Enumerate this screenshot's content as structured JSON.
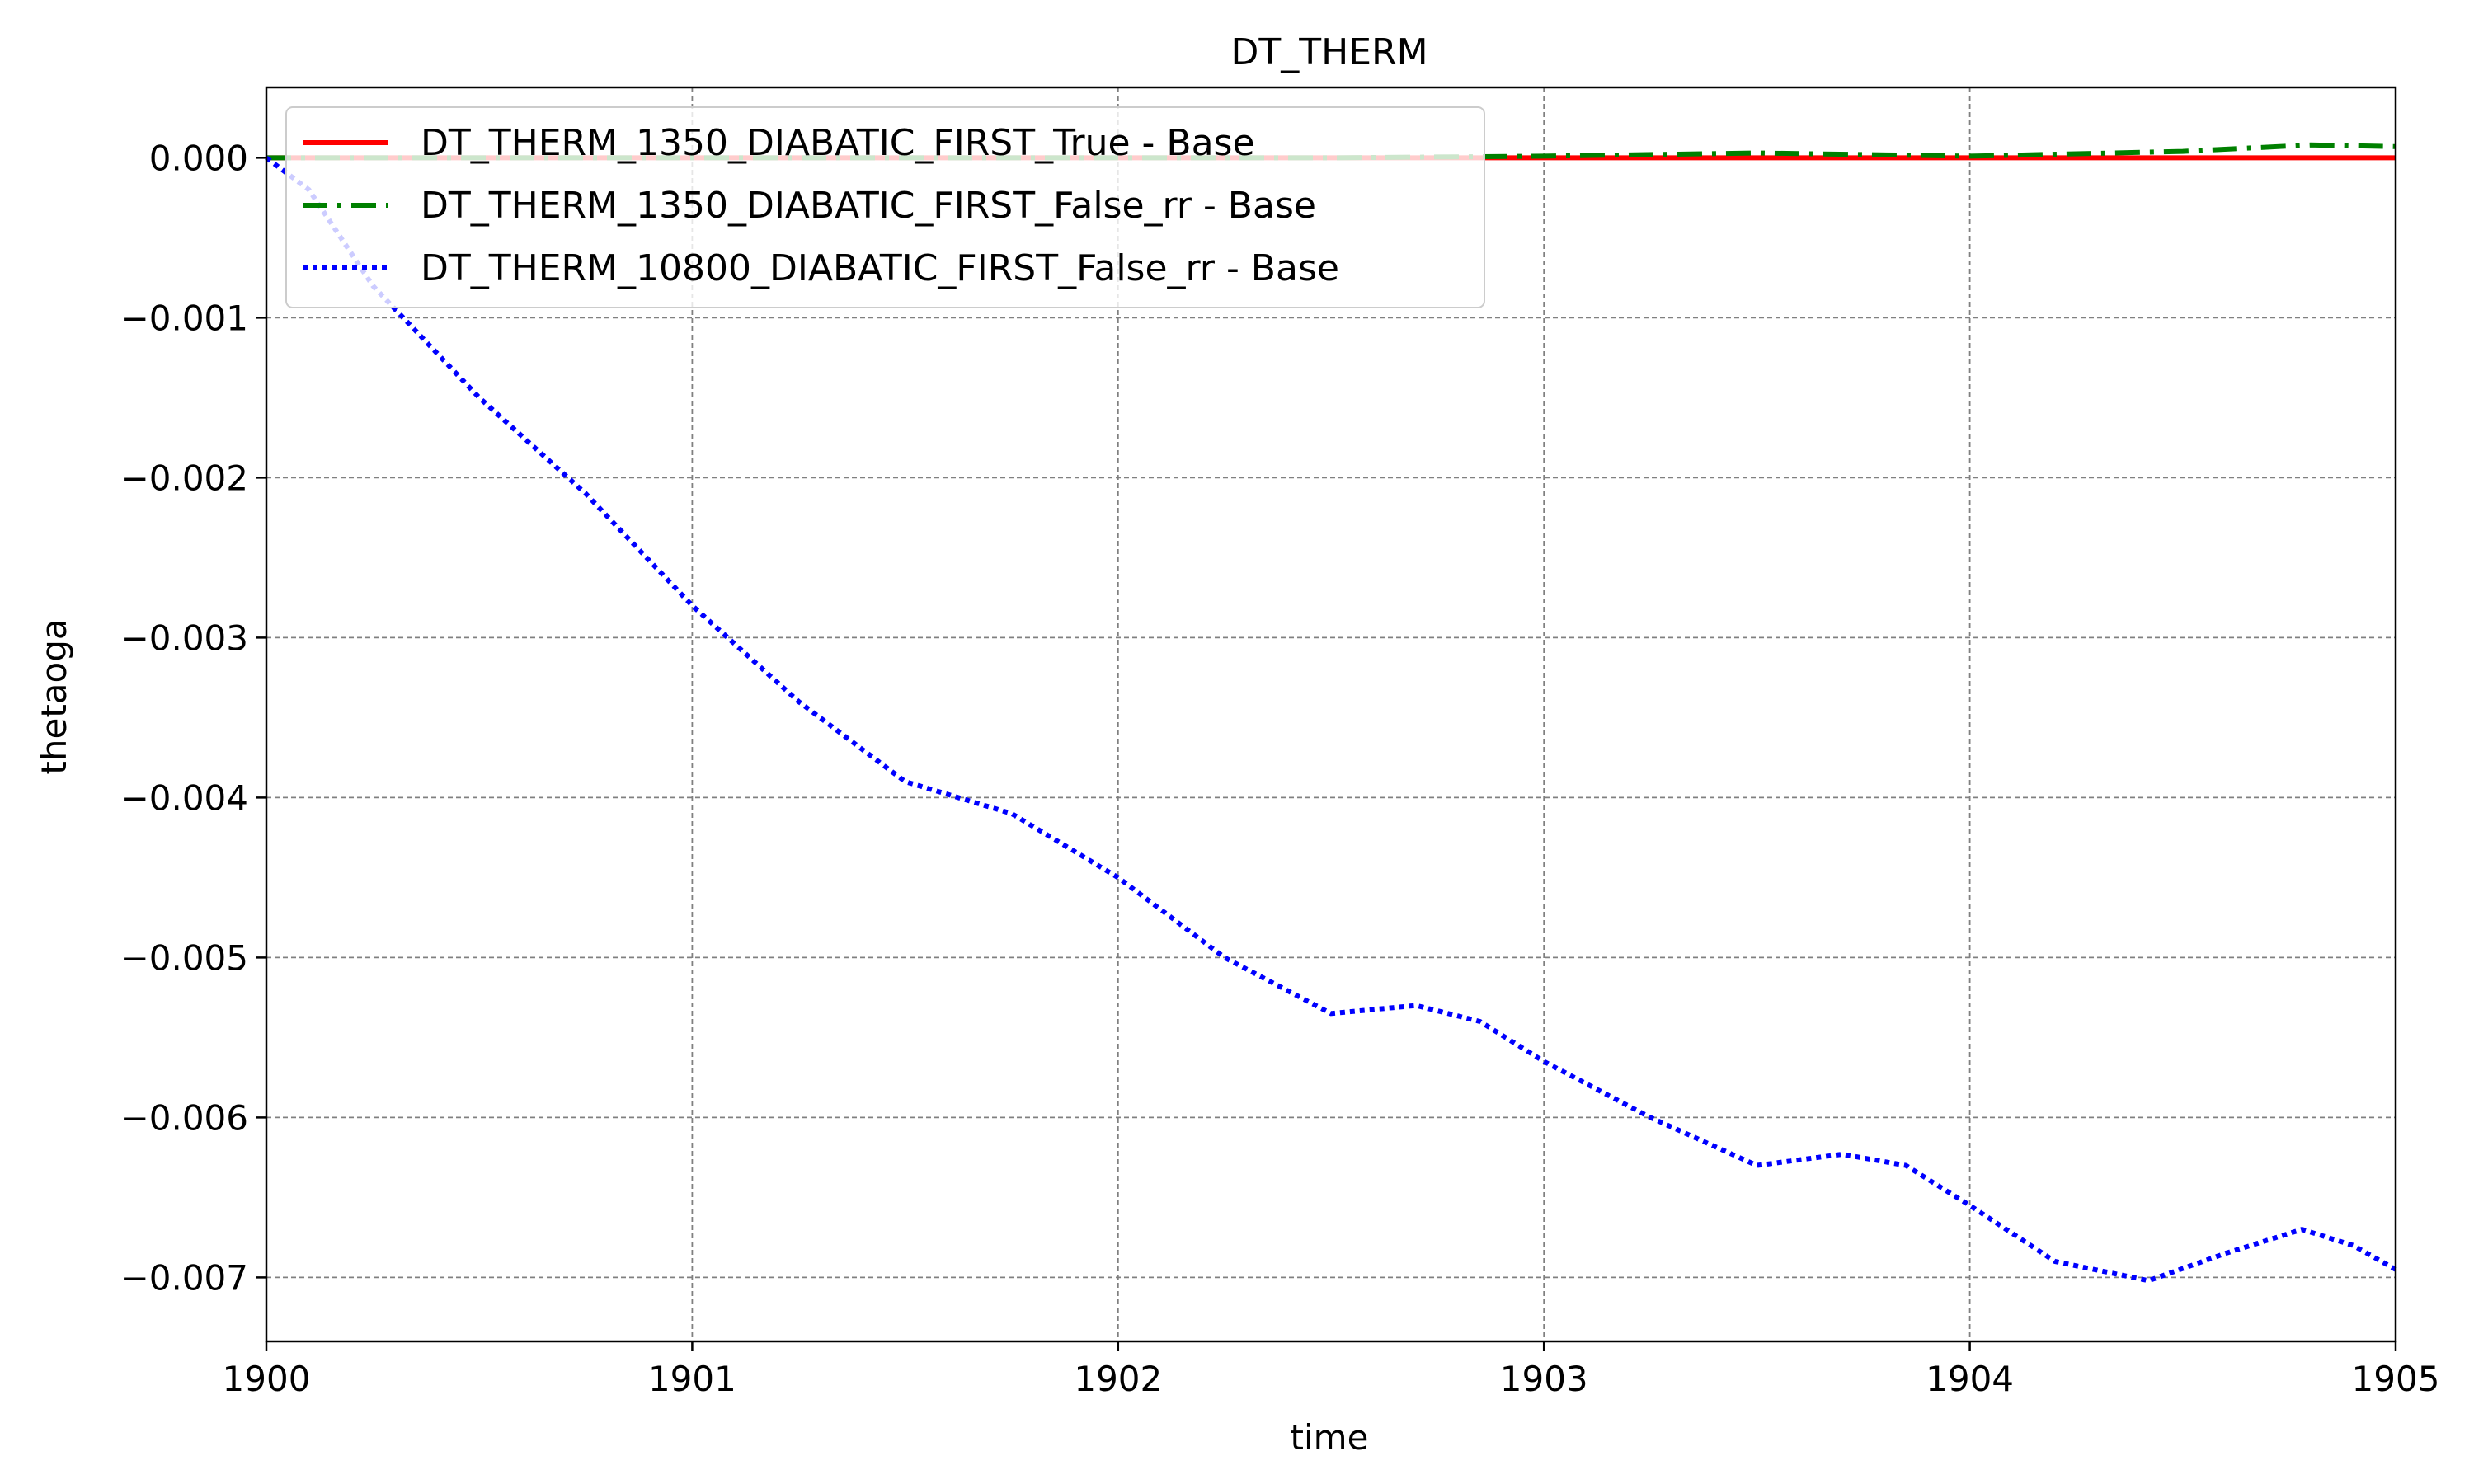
{
  "chart_data": {
    "type": "line",
    "title": "DT_THERM",
    "xlabel": "time",
    "ylabel": "thetaoga",
    "xlim": [
      1900,
      1905
    ],
    "ylim": [
      -0.0074,
      0.00044
    ],
    "xticks": [
      1900,
      1901,
      1902,
      1903,
      1904,
      1905
    ],
    "xtick_labels": [
      "1900",
      "1901",
      "1902",
      "1903",
      "1904",
      "1905"
    ],
    "yticks": [
      0.0,
      -0.001,
      -0.002,
      -0.003,
      -0.004,
      -0.005,
      -0.006,
      -0.007
    ],
    "ytick_labels": [
      "0.000",
      "−0.001",
      "−0.002",
      "−0.003",
      "−0.004",
      "−0.005",
      "−0.006",
      "−0.007"
    ],
    "grid": true,
    "legend_position": "top-left",
    "series": [
      {
        "name": "DT_THERM_1350_DIABATIC_FIRST_True - Base",
        "color": "#ff0000",
        "style": "solid",
        "x": [
          1900,
          1905
        ],
        "y": [
          0.0,
          0.0
        ]
      },
      {
        "name": "DT_THERM_1350_DIABATIC_FIRST_False_rr - Base",
        "color": "#008000",
        "style": "dashdot",
        "x": [
          1900,
          1900.5,
          1901,
          1901.5,
          1902,
          1902.5,
          1903,
          1903.5,
          1904,
          1904.5,
          1904.8,
          1905
        ],
        "y": [
          0.0,
          0.0,
          0.0,
          0.0,
          0.0,
          0.0,
          1e-05,
          3e-05,
          1e-05,
          4e-05,
          8e-05,
          7e-05
        ]
      },
      {
        "name": "DT_THERM_10800_DIABATIC_FIRST_False_rr - Base",
        "color": "#0000ff",
        "style": "dotted",
        "x": [
          1900,
          1900.1,
          1900.25,
          1900.5,
          1900.75,
          1901,
          1901.25,
          1901.5,
          1901.75,
          1902,
          1902.25,
          1902.5,
          1902.7,
          1902.85,
          1903,
          1903.25,
          1903.5,
          1903.7,
          1903.85,
          1904,
          1904.2,
          1904.42,
          1904.6,
          1904.78,
          1904.9,
          1905
        ],
        "y": [
          0.0,
          -0.0002,
          -0.0008,
          -0.0015,
          -0.0021,
          -0.0028,
          -0.0034,
          -0.0039,
          -0.0041,
          -0.0045,
          -0.005,
          -0.00535,
          -0.0053,
          -0.0054,
          -0.00565,
          -0.006,
          -0.0063,
          -0.00623,
          -0.0063,
          -0.00655,
          -0.0069,
          -0.00702,
          -0.00685,
          -0.0067,
          -0.0068,
          -0.00695
        ]
      }
    ]
  }
}
